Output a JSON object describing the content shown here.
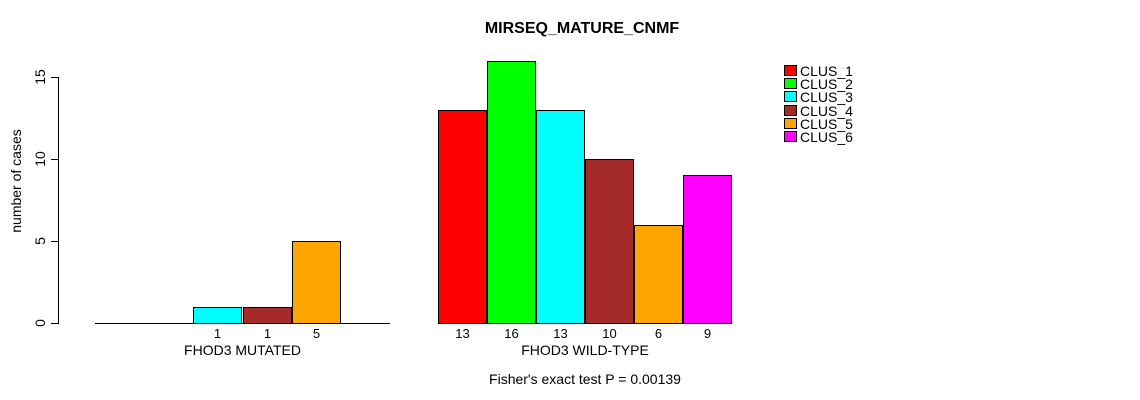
{
  "chart_data": {
    "type": "bar",
    "title": "MIRSEQ_MATURE_CNMF",
    "ylabel": "number of cases",
    "xlabel": "",
    "ylim": [
      0,
      16
    ],
    "yticks": [
      0,
      5,
      10,
      15
    ],
    "grid": false,
    "legend_position": "right-outside",
    "series_labels": [
      "CLUS_1",
      "CLUS_2",
      "CLUS_3",
      "CLUS_4",
      "CLUS_5",
      "CLUS_6"
    ],
    "colors": [
      "#FF0000",
      "#00FF00",
      "#00FFFF",
      "#A52A2A",
      "#FFA500",
      "#FF00FF"
    ],
    "groups": [
      {
        "label": "FHOD3 MUTATED",
        "values": [
          0,
          0,
          1,
          1,
          5,
          0
        ]
      },
      {
        "label": "FHOD3 WILD-TYPE",
        "values": [
          13,
          16,
          13,
          10,
          6,
          9
        ]
      }
    ],
    "bar_value_labels": "shown under each nonzero bar",
    "annotation": "Fisher's exact test P = 0.00139"
  }
}
